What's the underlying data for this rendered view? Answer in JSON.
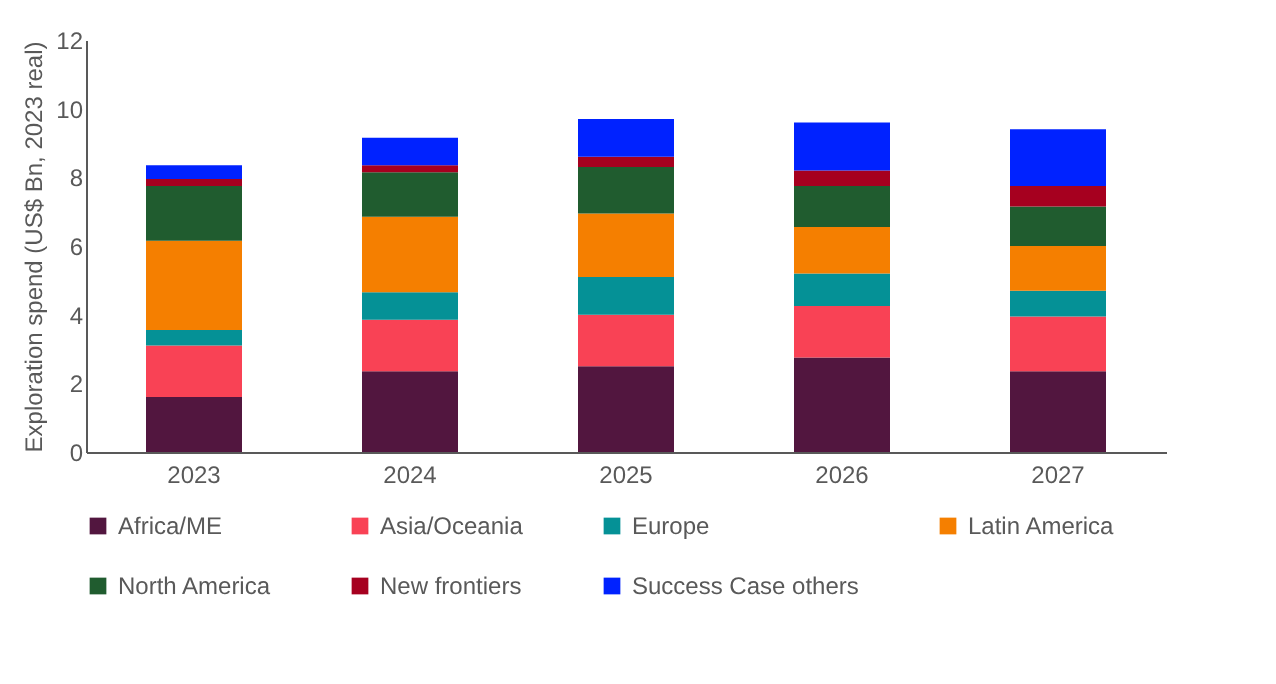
{
  "chart_data": {
    "type": "bar",
    "stacked": true,
    "ylabel": "Exploration spend (US$ Bn, 2023 real)",
    "categories": [
      "2023",
      "2024",
      "2025",
      "2026",
      "2027"
    ],
    "series": [
      {
        "name": "Africa/ME",
        "color": "#52163f",
        "values": [
          1.6,
          2.35,
          2.5,
          2.75,
          2.35
        ]
      },
      {
        "name": "Asia/Oceania",
        "color": "#f94255",
        "values": [
          1.5,
          1.5,
          1.5,
          1.5,
          1.6
        ]
      },
      {
        "name": "Europe",
        "color": "#059196",
        "values": [
          0.45,
          0.8,
          1.1,
          0.95,
          0.75
        ]
      },
      {
        "name": "Latin America",
        "color": "#f57f00",
        "values": [
          2.6,
          2.2,
          1.85,
          1.35,
          1.3
        ]
      },
      {
        "name": "North America",
        "color": "#205c2f",
        "values": [
          1.6,
          1.3,
          1.35,
          1.2,
          1.15
        ]
      },
      {
        "name": "New frontiers",
        "color": "#a6001f",
        "values": [
          0.2,
          0.2,
          0.3,
          0.45,
          0.6
        ]
      },
      {
        "name": "Success Case others",
        "color": "#0022ff",
        "values": [
          0.4,
          0.8,
          1.1,
          1.4,
          1.65
        ]
      }
    ],
    "ylim": [
      0,
      12
    ],
    "yticks": [
      0,
      2,
      4,
      6,
      8,
      10,
      12
    ],
    "grid": false,
    "legend": "bottom"
  }
}
